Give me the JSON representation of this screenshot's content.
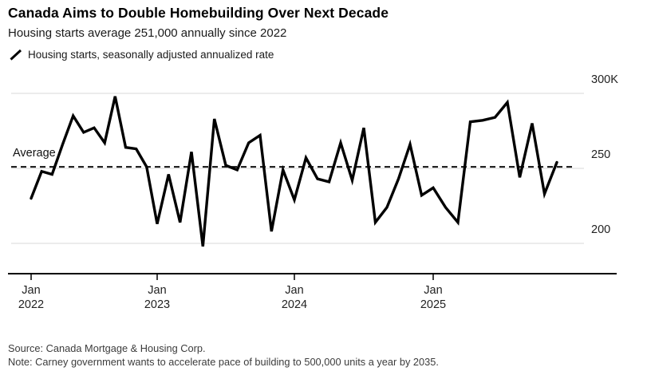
{
  "header": {
    "title": "Canada Aims to Double Homebuilding Over Next Decade",
    "subtitle": "Housing starts average 251,000 annually since 2022"
  },
  "legend": {
    "icon": "line-series-slash-icon",
    "label": "Housing starts, seasonally adjusted annualized rate"
  },
  "chart_data": {
    "type": "line",
    "title": "Canada Aims to Double Homebuilding Over Next Decade",
    "subtitle": "Housing starts average 251,000 annually since 2022",
    "series_name": "Housing starts, seasonally adjusted annualized rate",
    "unit": "thousands of units, SAAR",
    "x": [
      "Jan 2022",
      "Feb 2022",
      "Mar 2022",
      "Apr 2022",
      "May 2022",
      "Jun 2022",
      "Jul 2022",
      "Aug 2022",
      "Sep 2022",
      "Oct 2022",
      "Nov 2022",
      "Dec 2022",
      "Jan 2023",
      "Feb 2023",
      "Mar 2023",
      "Apr 2023",
      "May 2023",
      "Jun 2023",
      "Jul 2023",
      "Aug 2023",
      "Sep 2023",
      "Oct 2023",
      "Nov 2023",
      "Dec 2023",
      "Jan 2024",
      "Feb 2024",
      "Mar 2024",
      "Apr 2024",
      "May 2024",
      "Jun 2024",
      "Jul 2024",
      "Aug 2024",
      "Sep 2024",
      "Oct 2024",
      "Nov 2024",
      "Dec 2024",
      "Jan 2025",
      "Feb 2025",
      "Mar 2025",
      "Apr 2025",
      "May 2025",
      "Jun 2025",
      "Jul 2025",
      "Aug 2025",
      "Sep 2025",
      "Oct 2025",
      "Nov 2025"
    ],
    "values": [
      230,
      248,
      246,
      266,
      285,
      274,
      277,
      267,
      298,
      264,
      263,
      251,
      213,
      246,
      214,
      261,
      198,
      283,
      252,
      249,
      267,
      272,
      208,
      249,
      229,
      257,
      243,
      241,
      267,
      242,
      277,
      214,
      224,
      243,
      266,
      232,
      237,
      224,
      214,
      281,
      282,
      284,
      294,
      244,
      280,
      233,
      254
    ],
    "ylim": [
      180,
      306
    ],
    "yticks": [
      300,
      250,
      200
    ],
    "ytick_labels": [
      "300K",
      "250",
      "200"
    ],
    "xticks": [
      "Jan 2022",
      "Jan 2023",
      "Jan 2024",
      "Jan 2025"
    ],
    "average_line": {
      "label": "Average",
      "value": 251
    },
    "grid": "horizontal",
    "legend_position": "top-left",
    "line_color": "#000000",
    "grid_color": "#d9d9d9"
  },
  "footer": {
    "source": "Source: Canada Mortgage & Housing Corp.",
    "note": "Note: Carney government wants to accelerate pace of building to 500,000 units a year by 2035."
  }
}
